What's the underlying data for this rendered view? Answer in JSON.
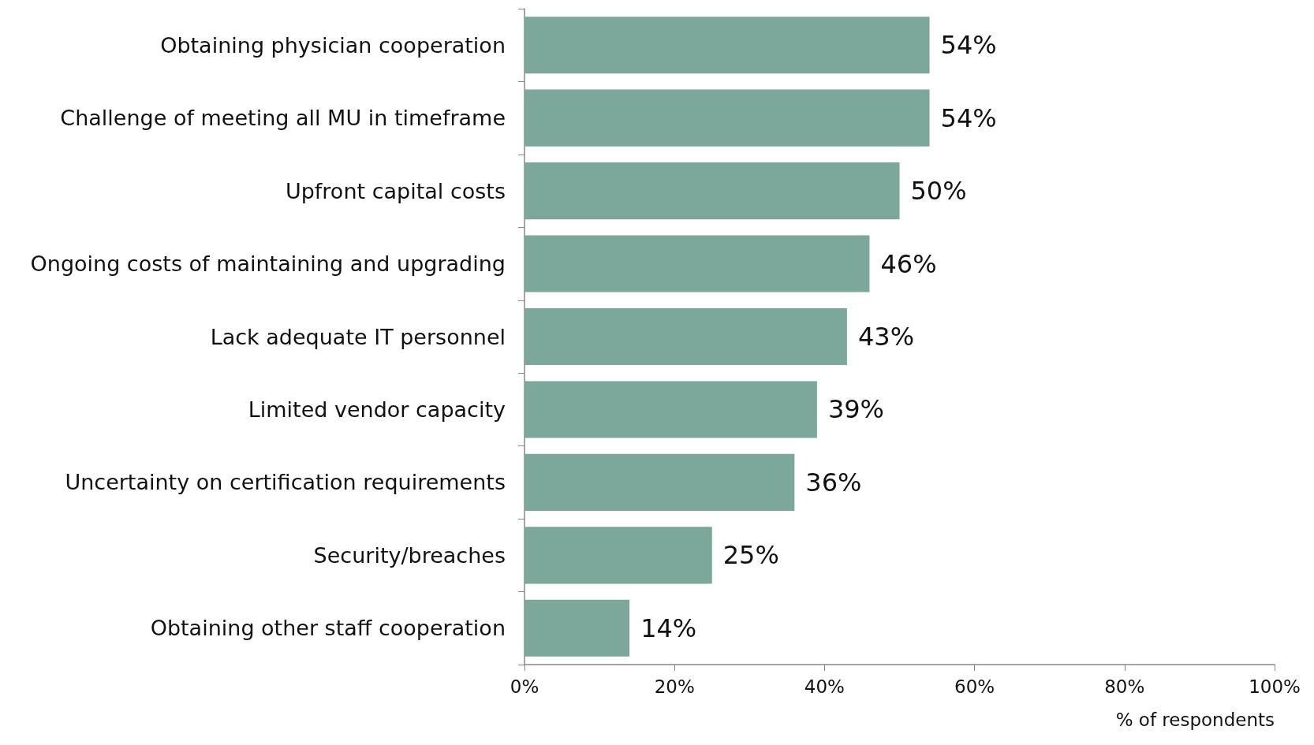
{
  "chart_data": {
    "type": "bar",
    "orientation": "horizontal",
    "categories": [
      "Obtaining physician cooperation",
      "Challenge of meeting all MU in timeframe",
      "Upfront capital costs",
      "Ongoing costs of maintaining and upgrading",
      "Lack adequate IT personnel",
      "Limited vendor capacity",
      "Uncertainty on certification requirements",
      "Security/breaches",
      "Obtaining other staff cooperation"
    ],
    "values": [
      54,
      54,
      50,
      46,
      43,
      39,
      36,
      25,
      14
    ],
    "value_labels": [
      "54%",
      "54%",
      "50%",
      "46%",
      "43%",
      "39%",
      "36%",
      "25%",
      "14%"
    ],
    "color": "#7ba89b",
    "xlabel": "% of respondents",
    "xlim": [
      0,
      100
    ],
    "xticks": [
      {
        "value": 0,
        "label": "0%"
      },
      {
        "value": 20,
        "label": "20%"
      },
      {
        "value": 40,
        "label": "40%"
      },
      {
        "value": 60,
        "label": "60%"
      },
      {
        "value": 80,
        "label": "80%"
      },
      {
        "value": 100,
        "label": "100%"
      }
    ],
    "grid": false
  }
}
